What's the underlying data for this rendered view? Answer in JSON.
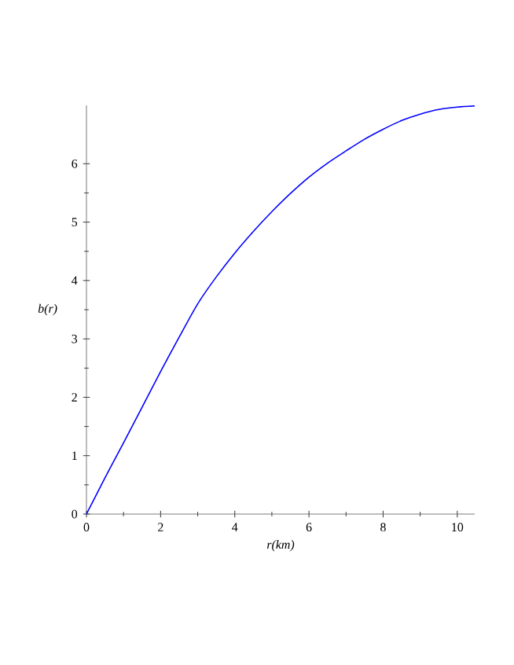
{
  "chart_data": {
    "type": "line",
    "xlabel": "r(km)",
    "ylabel": "b(r)",
    "x": [
      0,
      0.5,
      1,
      1.5,
      2,
      2.5,
      3,
      3.5,
      4,
      4.5,
      5,
      5.5,
      6,
      6.5,
      7,
      7.5,
      8,
      8.5,
      9,
      9.5,
      10,
      10.47
    ],
    "series": [
      {
        "color": "#0000ff",
        "values": [
          0,
          0.62,
          1.22,
          1.83,
          2.44,
          3.03,
          3.6,
          4.06,
          4.47,
          4.84,
          5.18,
          5.49,
          5.77,
          6.01,
          6.22,
          6.42,
          6.59,
          6.74,
          6.85,
          6.93,
          6.97,
          6.99
        ]
      }
    ],
    "xlim": [
      0,
      10.47
    ],
    "ylim": [
      0,
      7
    ],
    "xticks": [
      0,
      2,
      4,
      6,
      8,
      10
    ],
    "yticks": [
      0,
      1,
      2,
      3,
      4,
      5,
      6
    ],
    "marker": "none",
    "line_style": "solid"
  }
}
